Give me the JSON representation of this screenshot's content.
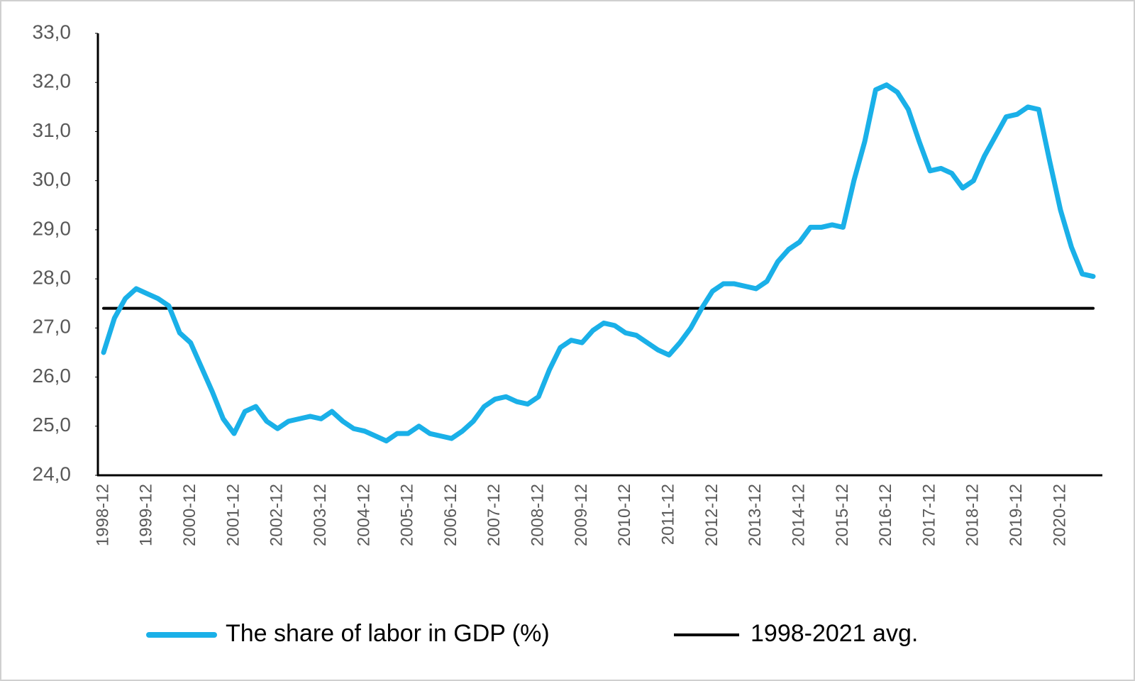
{
  "chart_data": {
    "type": "line",
    "categories": [
      "1998-12",
      null,
      null,
      null,
      "1999-12",
      null,
      null,
      null,
      "2000-12",
      null,
      null,
      null,
      "2001-12",
      null,
      null,
      null,
      "2002-12",
      null,
      null,
      null,
      "2003-12",
      null,
      null,
      null,
      "2004-12",
      null,
      null,
      null,
      "2005-12",
      null,
      null,
      null,
      "2006-12",
      null,
      null,
      null,
      "2007-12",
      null,
      null,
      null,
      "2008-12",
      null,
      null,
      null,
      "2009-12",
      null,
      null,
      null,
      "2010-12",
      null,
      null,
      null,
      "2011-12",
      null,
      null,
      null,
      "2012-12",
      null,
      null,
      null,
      "2013-12",
      null,
      null,
      null,
      "2014-12",
      null,
      null,
      null,
      "2015-12",
      null,
      null,
      null,
      "2016-12",
      null,
      null,
      null,
      "2017-12",
      null,
      null,
      null,
      "2018-12",
      null,
      null,
      null,
      "2019-12",
      null,
      null,
      null,
      "2020-12",
      null,
      null,
      null
    ],
    "series": [
      {
        "name": "The share of labor in GDP (%)",
        "color": "#1ab0e8",
        "values": [
          26.5,
          27.2,
          27.6,
          27.8,
          27.7,
          27.6,
          27.45,
          26.9,
          26.7,
          26.2,
          25.7,
          25.15,
          24.85,
          25.3,
          25.4,
          25.1,
          24.95,
          25.1,
          25.15,
          25.2,
          25.15,
          25.3,
          25.1,
          24.95,
          24.9,
          24.8,
          24.7,
          24.85,
          24.85,
          25.0,
          24.85,
          24.8,
          24.75,
          24.9,
          25.1,
          25.4,
          25.55,
          25.6,
          25.5,
          25.45,
          25.6,
          26.15,
          26.6,
          26.75,
          26.7,
          26.95,
          27.1,
          27.05,
          26.9,
          26.85,
          26.7,
          26.55,
          26.45,
          26.7,
          27.0,
          27.4,
          27.75,
          27.9,
          27.9,
          27.85,
          27.8,
          27.95,
          28.35,
          28.6,
          28.75,
          29.05,
          29.05,
          29.1,
          29.05,
          30.0,
          30.8,
          31.85,
          31.95,
          31.8,
          31.45,
          30.8,
          30.2,
          30.25,
          30.15,
          29.85,
          30.0,
          30.5,
          30.9,
          31.3,
          31.35,
          31.5,
          31.45,
          30.4,
          29.4,
          28.65,
          28.1,
          28.05
        ]
      },
      {
        "name": "1998-2021 avg.",
        "color": "#000000",
        "values": [
          27.4,
          27.4,
          27.4,
          27.4,
          27.4,
          27.4,
          27.4,
          27.4,
          27.4,
          27.4,
          27.4,
          27.4,
          27.4,
          27.4,
          27.4,
          27.4,
          27.4,
          27.4,
          27.4,
          27.4,
          27.4,
          27.4,
          27.4,
          27.4,
          27.4,
          27.4,
          27.4,
          27.4,
          27.4,
          27.4,
          27.4,
          27.4,
          27.4,
          27.4,
          27.4,
          27.4,
          27.4,
          27.4,
          27.4,
          27.4,
          27.4,
          27.4,
          27.4,
          27.4,
          27.4,
          27.4,
          27.4,
          27.4,
          27.4,
          27.4,
          27.4,
          27.4,
          27.4,
          27.4,
          27.4,
          27.4,
          27.4,
          27.4,
          27.4,
          27.4,
          27.4,
          27.4,
          27.4,
          27.4,
          27.4,
          27.4,
          27.4,
          27.4,
          27.4,
          27.4,
          27.4,
          27.4,
          27.4,
          27.4,
          27.4,
          27.4,
          27.4,
          27.4,
          27.4,
          27.4,
          27.4,
          27.4,
          27.4,
          27.4,
          27.4,
          27.4,
          27.4,
          27.4,
          27.4,
          27.4,
          27.4,
          27.4
        ]
      }
    ],
    "ylim": [
      24,
      33
    ],
    "yticks": [
      {
        "value": 24,
        "label": "24,0"
      },
      {
        "value": 25,
        "label": "25,0"
      },
      {
        "value": 26,
        "label": "26,0"
      },
      {
        "value": 27,
        "label": "27,0"
      },
      {
        "value": 28,
        "label": "28,0"
      },
      {
        "value": 29,
        "label": "29,0"
      },
      {
        "value": 30,
        "label": "30,0"
      },
      {
        "value": 31,
        "label": "31,0"
      },
      {
        "value": 32,
        "label": "32,0"
      },
      {
        "value": 33,
        "label": "33,0"
      }
    ],
    "grid": false,
    "legend": "bottom"
  }
}
